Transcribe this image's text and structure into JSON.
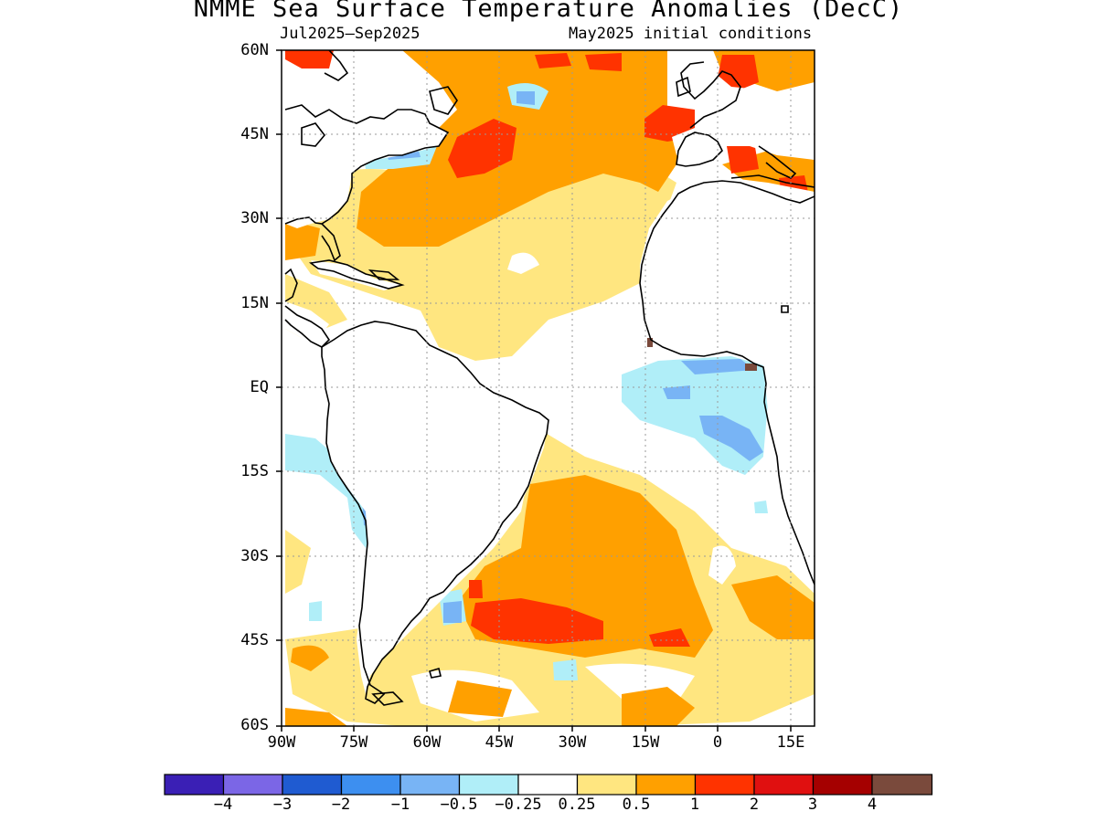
{
  "title": "NMME Sea Surface Temperature Anomalies (DecC)",
  "subtitle_left": "Jul2025–Sep2025",
  "subtitle_right": "May2025 initial conditions",
  "map": {
    "lat_labels": [
      "60N",
      "45N",
      "30N",
      "15N",
      "EQ",
      "15S",
      "30S",
      "45S",
      "60S"
    ],
    "lon_labels": [
      "90W",
      "75W",
      "60W",
      "45W",
      "30W",
      "15W",
      "0",
      "15E"
    ],
    "extent": {
      "lon": [
        -90,
        19
      ],
      "lat": [
        -60,
        60
      ]
    },
    "grid": "dotted"
  },
  "colorbar": {
    "colors": [
      "#3a1fb5",
      "#7b66e6",
      "#1f5bd1",
      "#3d8ff0",
      "#78b4f5",
      "#b0eef8",
      "#ffffff",
      "#ffe680",
      "#ffa000",
      "#ff3300",
      "#e01010",
      "#a50000",
      "#7a4a3c"
    ],
    "labels": [
      "−4",
      "−3",
      "−2",
      "−1",
      "−0.5",
      "−0.25",
      "0.25",
      "0.5",
      "1",
      "2",
      "3",
      "4"
    ]
  }
}
